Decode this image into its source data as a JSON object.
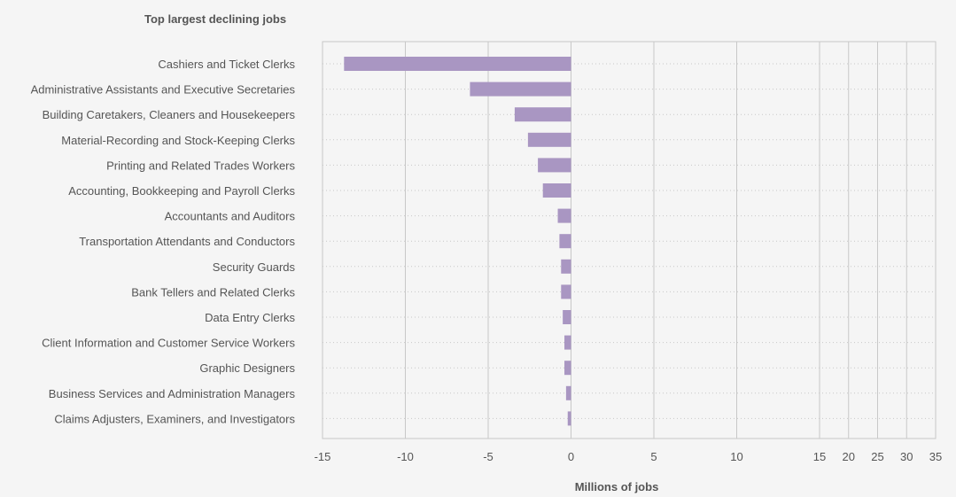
{
  "chart_data": {
    "type": "bar",
    "orientation": "horizontal",
    "title": "Top largest declining jobs",
    "xlabel": "Millions of jobs",
    "ylabel": "",
    "categories": [
      "Cashiers and Ticket Clerks",
      "Administrative Assistants and Executive Secretaries",
      "Building Caretakers, Cleaners and Housekeepers",
      "Material-Recording and Stock-Keeping Clerks",
      "Printing and Related Trades Workers",
      "Accounting, Bookkeeping and Payroll Clerks",
      "Accountants and Auditors",
      "Transportation Attendants and Conductors",
      "Security Guards",
      "Bank Tellers and Related Clerks",
      "Data Entry Clerks",
      "Client Information and Customer Service Workers",
      "Graphic Designers",
      "Business Services and Administration Managers",
      "Claims Adjusters, Examiners, and Investigators"
    ],
    "values": [
      -13.7,
      -6.1,
      -3.4,
      -2.6,
      -2.0,
      -1.7,
      -0.8,
      -0.7,
      -0.6,
      -0.6,
      -0.5,
      -0.4,
      -0.4,
      -0.3,
      -0.2
    ],
    "xticks": [
      "-15",
      "-10",
      "-5",
      "0",
      "5",
      "10",
      "15",
      "20",
      "25",
      "30",
      "35"
    ],
    "xscale": "piecewise: linear from -15 to 15, compressed from 15 to 35",
    "grid": "vertical solid lines, horizontal dotted lines",
    "bar_color": "#a996c2"
  }
}
